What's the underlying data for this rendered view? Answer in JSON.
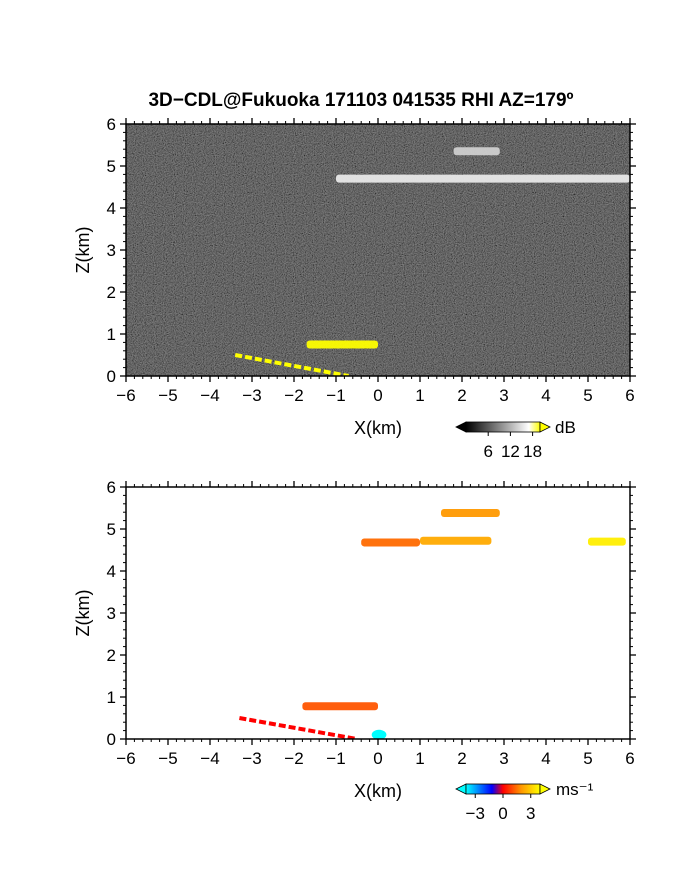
{
  "title": "3D−CDL@Fukuoka 171103 041535 RHI AZ=179º",
  "chart_data": [
    {
      "id": "snr",
      "type": "heatmap",
      "quantity": "intensity",
      "xlabel": "X(km)",
      "ylabel": "Z(km)",
      "xlim": [
        -6,
        6
      ],
      "ylim": [
        0,
        6
      ],
      "xticks": [
        "−6",
        "−5",
        "−4",
        "−3",
        "−2",
        "−1",
        "0",
        "1",
        "2",
        "3",
        "4",
        "5",
        "6"
      ],
      "yticks": [
        "0",
        "1",
        "2",
        "3",
        "4",
        "5",
        "6"
      ],
      "colorbar": {
        "unit": "dB",
        "ticks": [
          "6",
          "12",
          "18"
        ],
        "range": [
          0,
          20
        ],
        "colors": [
          "#000000",
          "#ffffff",
          "#ffff00"
        ]
      },
      "background_color": "#1c1c1c",
      "features": [
        {
          "label": "cloud layer",
          "x": [
            -1.0,
            6.0
          ],
          "z": 4.7,
          "level": 13,
          "color": "#e8e8e8"
        },
        {
          "label": "upper patch",
          "x": [
            1.8,
            2.9
          ],
          "z": 5.35,
          "level": 11,
          "color": "#cfcfcf"
        },
        {
          "label": "aerosol layer",
          "x": [
            -1.7,
            0.0
          ],
          "z": 0.75,
          "level": 20,
          "color": "#ffff00"
        },
        {
          "label": "ground echo",
          "x": [
            -3.4,
            -0.7
          ],
          "z": [
            0.5,
            0.0
          ],
          "level": 19,
          "color": "#ffff00"
        }
      ]
    },
    {
      "id": "velocity",
      "type": "heatmap",
      "quantity": "radial velocity",
      "xlabel": "X(km)",
      "ylabel": "Z(km)",
      "xlim": [
        -6,
        6
      ],
      "ylim": [
        0,
        6
      ],
      "xticks": [
        "−6",
        "−5",
        "−4",
        "−3",
        "−2",
        "−1",
        "0",
        "1",
        "2",
        "3",
        "4",
        "5",
        "6"
      ],
      "yticks": [
        "0",
        "1",
        "2",
        "3",
        "4",
        "5",
        "6"
      ],
      "colorbar": {
        "unit": "ms⁻¹",
        "ticks": [
          "−3",
          "0",
          "3"
        ],
        "range": [
          -4,
          4
        ],
        "colors": [
          "#00ffff",
          "#0000ff",
          "#ff0000",
          "#ffff00"
        ]
      },
      "background_color": "#ffffff",
      "features": [
        {
          "label": "cloud layer west",
          "x": [
            -0.4,
            1.0
          ],
          "z": 4.68,
          "value": 1.0,
          "color": "#ff6a00"
        },
        {
          "label": "cloud layer east",
          "x": [
            1.0,
            2.7
          ],
          "z": 4.72,
          "value": 2.5,
          "color": "#ffaa00"
        },
        {
          "label": "cloud layer far east",
          "x": [
            5.0,
            5.9
          ],
          "z": 4.7,
          "value": 3.8,
          "color": "#ffee00"
        },
        {
          "label": "upper patch",
          "x": [
            1.5,
            2.9
          ],
          "z": 5.38,
          "value": 2.0,
          "color": "#ff9900"
        },
        {
          "label": "aerosol layer",
          "x": [
            -1.8,
            0.0
          ],
          "z": 0.78,
          "value": 0.5,
          "color": "#ff5500"
        },
        {
          "label": "ground echo",
          "x": [
            -3.3,
            -0.5
          ],
          "z": [
            0.5,
            0.0
          ],
          "value": 0.0,
          "color": "#ff0000"
        },
        {
          "label": "near-ground echo",
          "x": [
            -0.15,
            0.2
          ],
          "z": 0.1,
          "value": -4.0,
          "color": "#00ffff"
        }
      ]
    }
  ]
}
